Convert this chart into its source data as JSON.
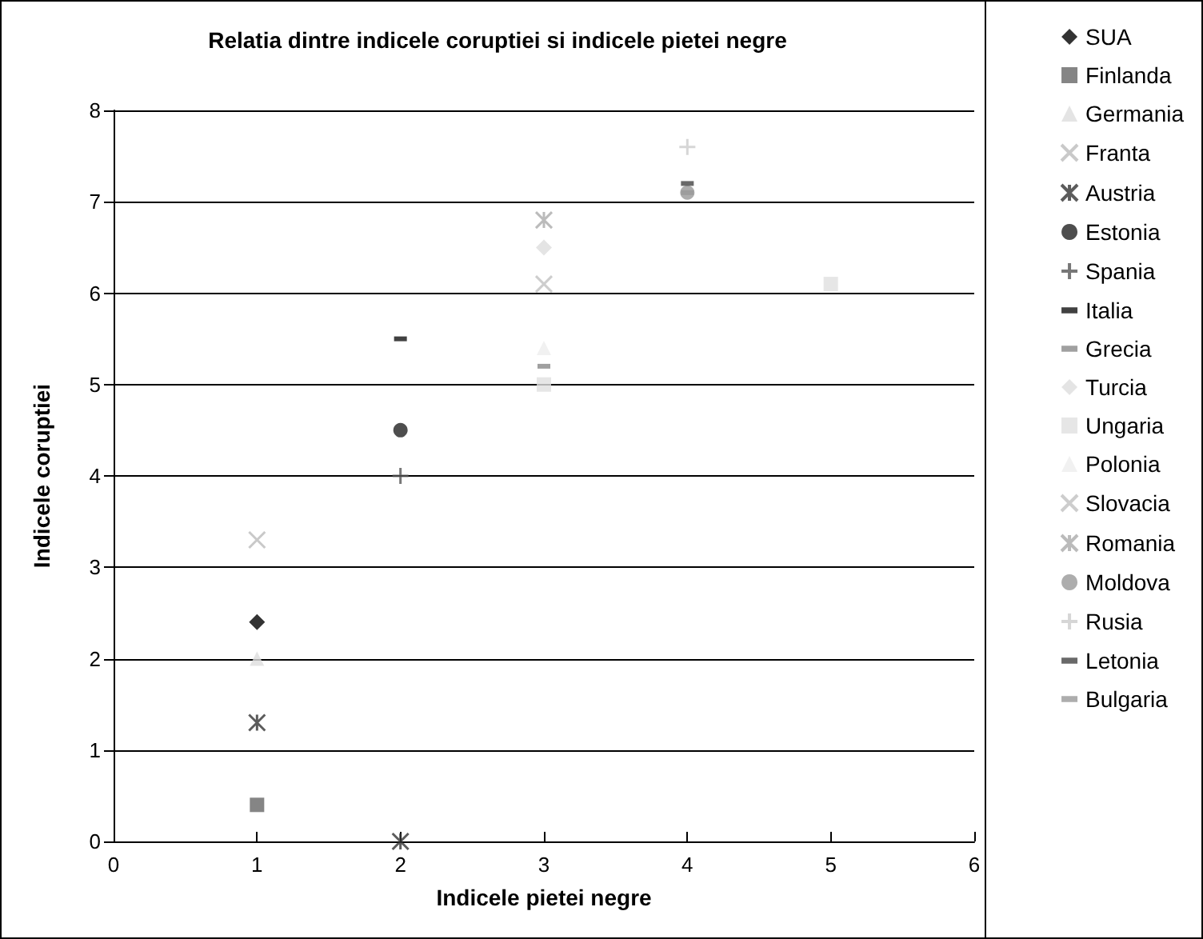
{
  "chart_data": {
    "type": "scatter",
    "title": "Relatia dintre indicele coruptiei si indicele pietei negre",
    "xlabel": "Indicele pietei negre",
    "ylabel": "Indicele coruptiei",
    "xlim": [
      0,
      6
    ],
    "xticks": [
      0,
      1,
      2,
      3,
      4,
      5,
      6
    ],
    "ylim": [
      0,
      8
    ],
    "yticks": [
      0,
      1,
      2,
      3,
      4,
      5,
      6,
      7,
      8
    ],
    "grid": "y",
    "legend": "right",
    "series": [
      {
        "name": "SUA",
        "color": "#000000",
        "marker": "diamond",
        "x": [
          1
        ],
        "values": [
          2.4
        ]
      },
      {
        "name": "Finlanda",
        "color": "#666666",
        "marker": "square",
        "x": [
          1
        ],
        "values": [
          0.4
        ]
      },
      {
        "name": "Germania",
        "color": "#dddddd",
        "marker": "triangle",
        "x": [
          1
        ],
        "values": [
          2.0
        ]
      },
      {
        "name": "Franta",
        "color": "#bbbbbb",
        "marker": "x",
        "x": [
          1
        ],
        "values": [
          3.3
        ]
      },
      {
        "name": "Austria",
        "color": "#333333",
        "marker": "cross",
        "x": [
          1,
          2
        ],
        "values": [
          1.3,
          0
        ]
      },
      {
        "name": "Estonia",
        "color": "#222222",
        "marker": "circle",
        "x": [
          2
        ],
        "values": [
          4.5
        ]
      },
      {
        "name": "Spania",
        "color": "#555555",
        "marker": "plus",
        "x": [
          2
        ],
        "values": [
          4.0
        ]
      },
      {
        "name": "Italia",
        "color": "#111111",
        "x": [
          2
        ],
        "values": [
          5.5
        ]
      },
      {
        "name": "Grecia",
        "color": "#888888",
        "x": [
          3
        ],
        "values": [
          5.2
        ]
      },
      {
        "name": "Turcia",
        "color": "#dddddd",
        "marker": "diamond",
        "x": [
          3
        ],
        "values": [
          6.5
        ]
      },
      {
        "name": "Ungaria",
        "color": "#e0e0e0",
        "marker": "square",
        "x": [
          3,
          5
        ],
        "values": [
          5.0,
          6.1
        ]
      },
      {
        "name": "Polonia",
        "color": "#eeeeee",
        "marker": "triangle",
        "x": [
          3
        ],
        "values": [
          5.4
        ]
      },
      {
        "name": "Slovacia",
        "color": "#c0c0c0",
        "marker": "x",
        "x": [
          3
        ],
        "values": [
          6.1
        ]
      },
      {
        "name": "Romania",
        "color": "#aaaaaa",
        "marker": "cross",
        "x": [
          3
        ],
        "values": [
          6.8
        ]
      },
      {
        "name": "Moldova",
        "color": "#999999",
        "marker": "circle",
        "x": [
          4
        ],
        "values": [
          7.1
        ]
      },
      {
        "name": "Rusia",
        "color": "#cccccc",
        "marker": "plus",
        "x": [
          4
        ],
        "values": [
          7.6
        ]
      },
      {
        "name": "Letonia",
        "color": "#444444",
        "x": [
          4
        ],
        "values": [
          7.2
        ]
      },
      {
        "name": "Bulgaria",
        "color": "#999999",
        "x": [
          4
        ],
        "values": [
          7.1
        ]
      }
    ]
  }
}
